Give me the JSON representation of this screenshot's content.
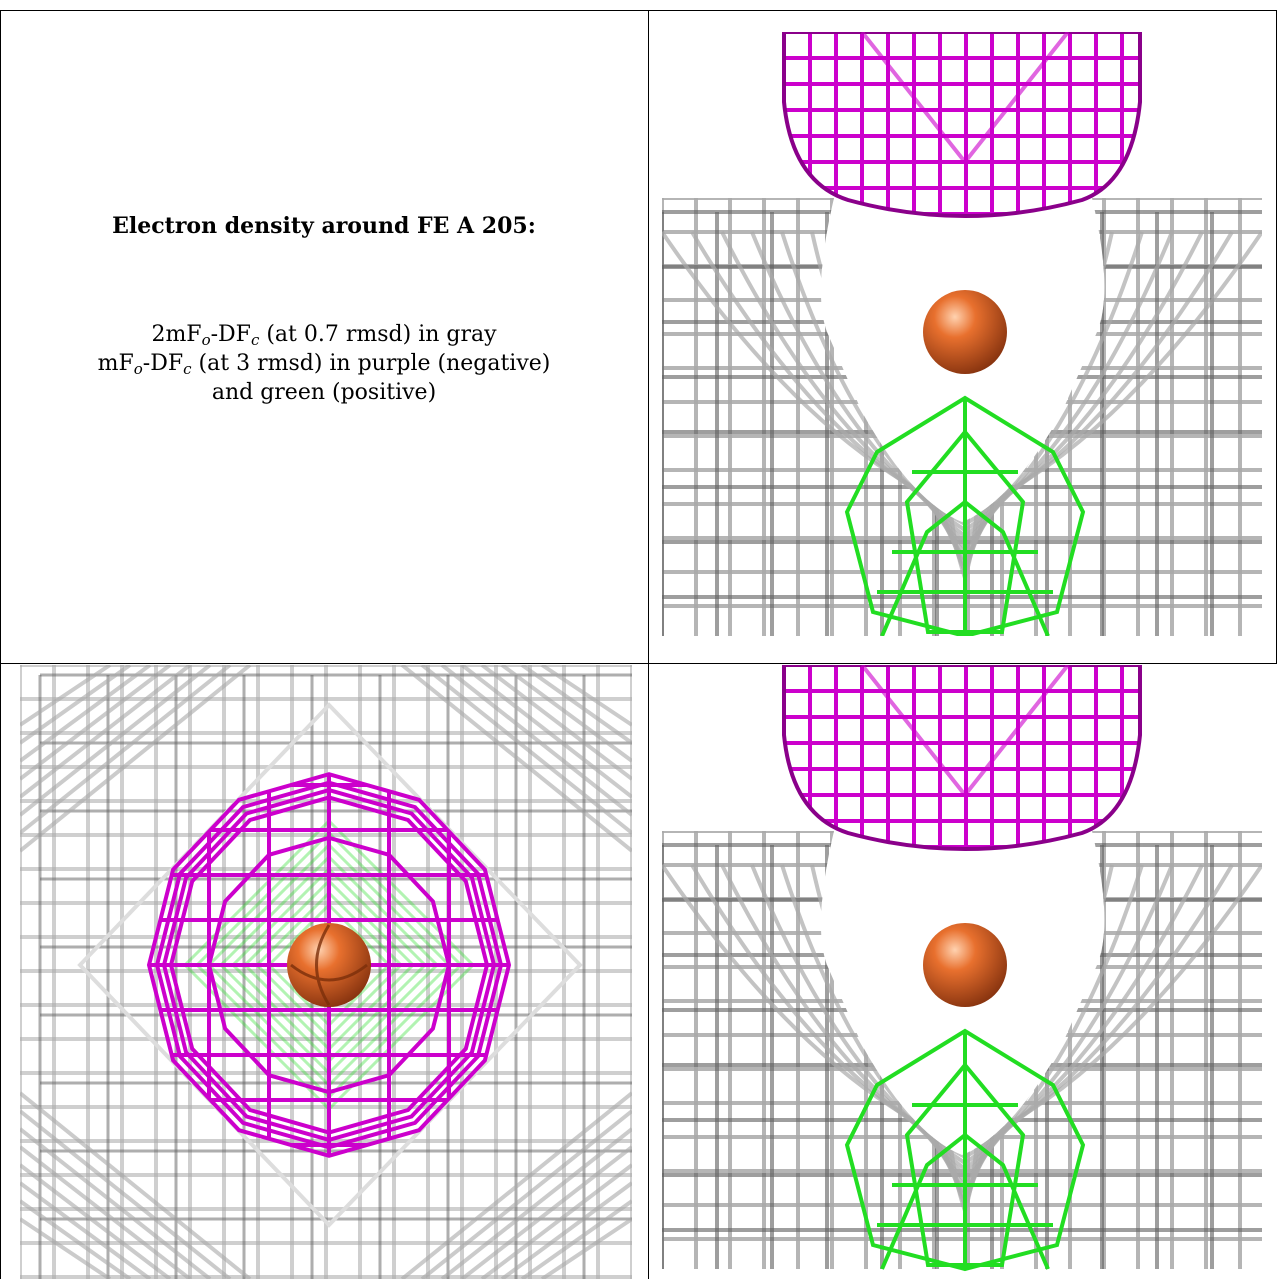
{
  "legend": {
    "title": "Electron density around FE A 205:",
    "line1": {
      "a": "2mF",
      "b": "o",
      "c": "-DF",
      "d": "c",
      "e": " (at 0.7 rmsd) in gray"
    },
    "line2": {
      "a": "mF",
      "b": "o",
      "c": "-DF",
      "d": "c",
      "e": " (at 3 rmsd) in purple (negative)"
    },
    "line3": "and green (positive)"
  },
  "colors": {
    "gray_mesh": "#a9a9a9",
    "gray_dark": "#5f5f5f",
    "purple_mesh": "#cc00cc",
    "green_mesh": "#22dd22",
    "iron_atom": "#e8702e"
  },
  "panels": [
    {
      "name": "side-view-top",
      "view": "side"
    },
    {
      "name": "top-down-view",
      "view": "top"
    },
    {
      "name": "side-view-bottom",
      "view": "side"
    }
  ]
}
